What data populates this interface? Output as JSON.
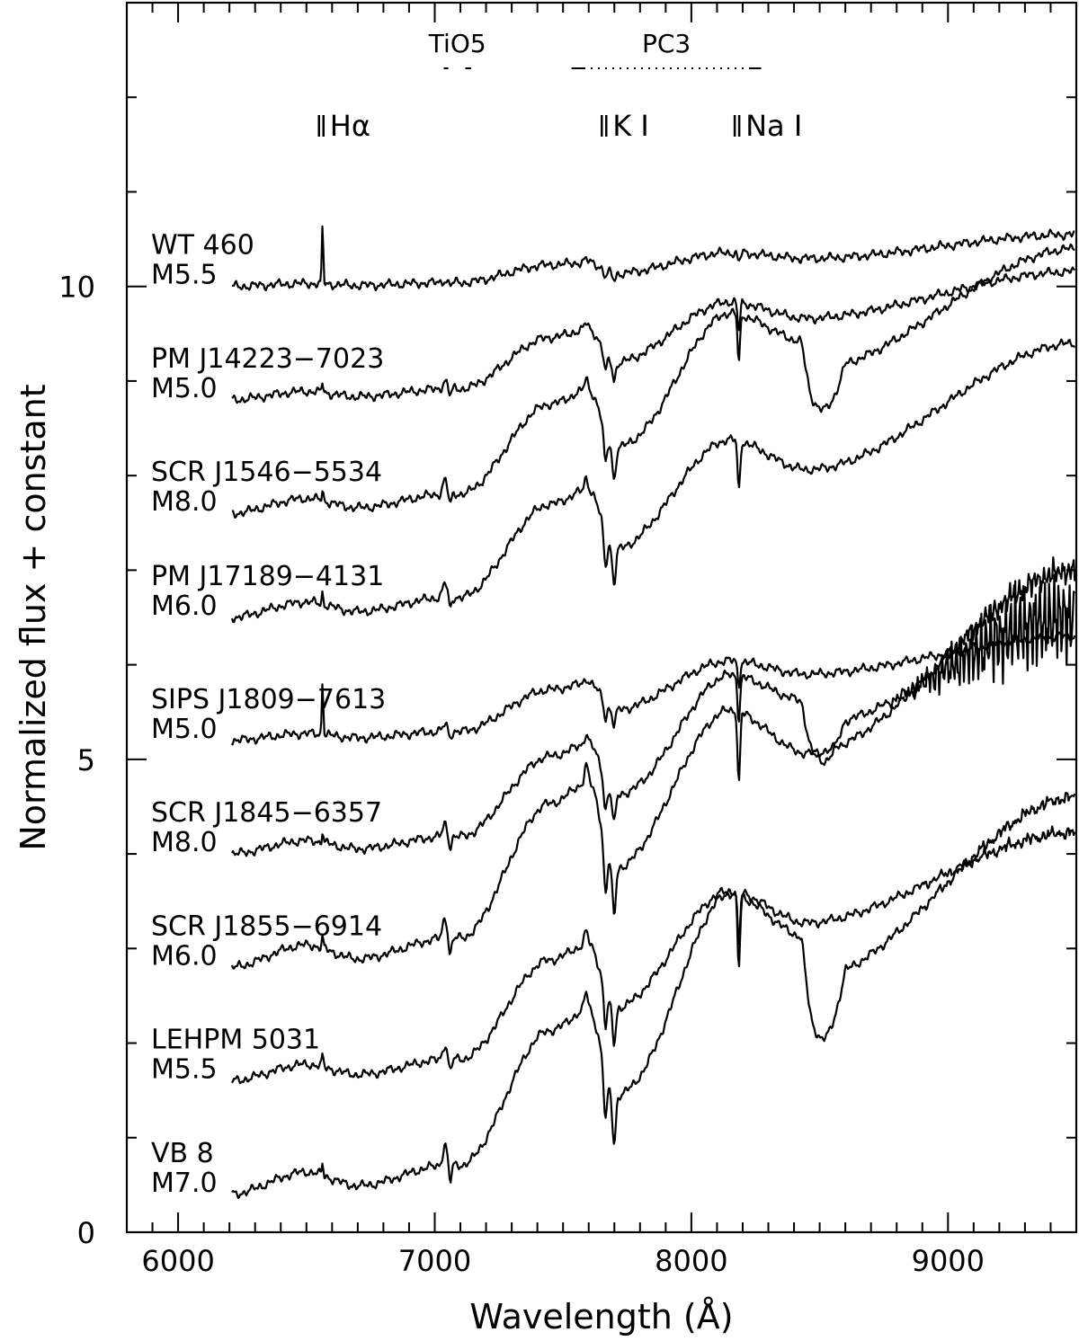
{
  "chart_data": {
    "type": "line",
    "xlabel": "Wavelength (Å)",
    "ylabel": "Normalized flux + constant",
    "xlim": [
      5800,
      9500
    ],
    "ylim": [
      0,
      13
    ],
    "xticks": [
      {
        "value": 6000,
        "label": "6000"
      },
      {
        "value": 7000,
        "label": "7000"
      },
      {
        "value": 8000,
        "label": "8000"
      },
      {
        "value": 9000,
        "label": "9000"
      }
    ],
    "yticks": [
      {
        "value": 0,
        "label": "0"
      },
      {
        "value": 5,
        "label": "5"
      },
      {
        "value": 10,
        "label": "10"
      }
    ],
    "features": [
      {
        "label": "Hα",
        "x": 6563
      },
      {
        "label": "K I",
        "x": 7665
      },
      {
        "label": "Na I",
        "x": 8183
      }
    ],
    "indices": [
      {
        "label": "TiO5",
        "bands": [
          [
            7042,
            7046
          ],
          [
            7126,
            7135
          ]
        ],
        "dotted": false
      },
      {
        "label": "PC3",
        "bands": [
          [
            7540,
            7580
          ],
          [
            8235,
            8265
          ]
        ],
        "dotted": true
      }
    ],
    "series": [
      {
        "name": "WT 460",
        "spectral_type": "M5.5",
        "offset": 10.0,
        "level": 10.55,
        "kind": "mid",
        "halpha": "strong",
        "noise": 0
      },
      {
        "name": "PM J14223-7023",
        "spectral_type": "M5.0",
        "offset": 8.8,
        "level": 10.4,
        "kind": "early",
        "halpha": "weak",
        "noise": 0
      },
      {
        "name": "SCR J1546-5534",
        "spectral_type": "M8.0",
        "offset": 7.6,
        "level": 10.4,
        "kind": "late",
        "halpha": "weak",
        "noise": 0
      },
      {
        "name": "PM J17189-4131",
        "spectral_type": "M6.0",
        "offset": 6.5,
        "level": 9.4,
        "kind": "mid",
        "halpha": "weak",
        "noise": 0
      },
      {
        "name": "SIPS J1809-7613",
        "spectral_type": "M5.0",
        "offset": 5.2,
        "level": 6.5,
        "kind": "early",
        "halpha": "strong",
        "noise": 0
      },
      {
        "name": "SCR J1845-6357",
        "spectral_type": "M8.0",
        "offset": 4.0,
        "level": 6.5,
        "kind": "late",
        "halpha": "weak",
        "noise": 0.6
      },
      {
        "name": "SCR J1855-6914",
        "spectral_type": "M6.0",
        "offset": 2.8,
        "level": 7.0,
        "kind": "mid",
        "halpha": "weak",
        "noise": 0.15
      },
      {
        "name": "LEHPM 5031",
        "spectral_type": "M5.5",
        "offset": 1.6,
        "level": 4.7,
        "kind": "early",
        "halpha": "weak",
        "noise": 0.05
      },
      {
        "name": "VB 8",
        "spectral_type": "M7.0",
        "offset": 0.4,
        "level": 4.6,
        "kind": "late",
        "halpha": "weak",
        "noise": 0.05
      }
    ]
  }
}
